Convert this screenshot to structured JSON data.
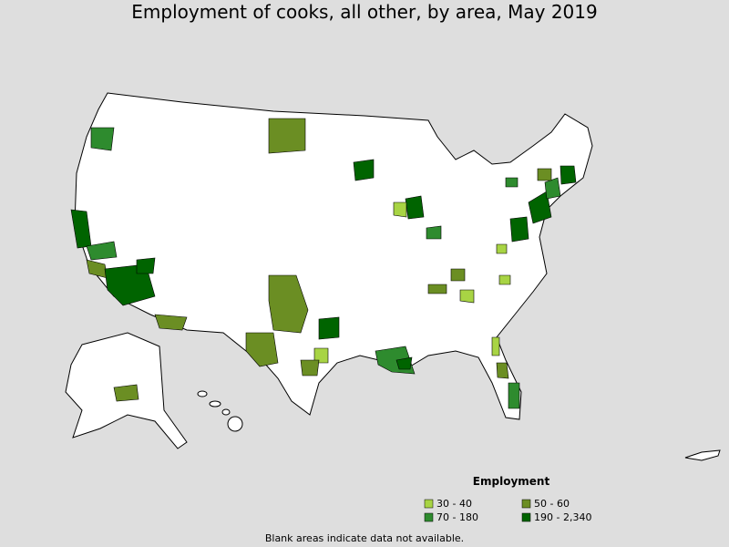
{
  "title": "Employment of cooks, all other, by area, May 2019",
  "legend": {
    "title": "Employment",
    "items": [
      {
        "label": "30 - 40",
        "color": "#a8d444"
      },
      {
        "label": "50 - 60",
        "color": "#6b8e23"
      },
      {
        "label": "70 - 180",
        "color": "#2e8b2e"
      },
      {
        "label": "190 - 2,340",
        "color": "#006400"
      }
    ]
  },
  "footnote": "Blank areas indicate data not available."
}
